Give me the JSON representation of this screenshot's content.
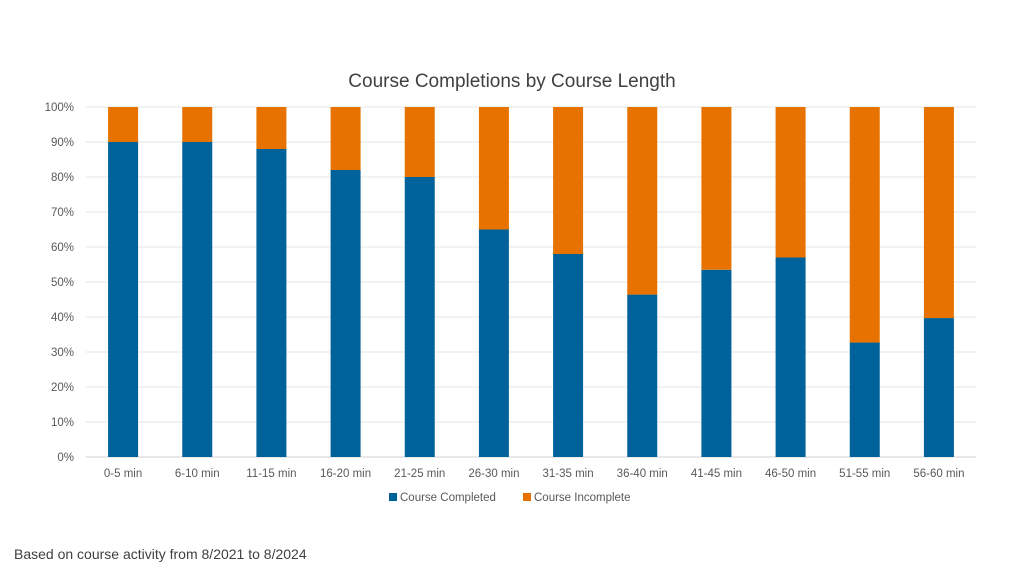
{
  "chart_data": {
    "type": "bar",
    "stacked": "percent",
    "title": "Course Completions by Course Length",
    "xlabel": "",
    "ylabel": "",
    "categories": [
      "0-5 min",
      "6-10 min",
      "11-15 min",
      "16-20 min",
      "21-25 min",
      "26-30 min",
      "31-35 min",
      "36-40 min",
      "41-45 min",
      "46-50 min",
      "51-55 min",
      "56-60 min"
    ],
    "series": [
      {
        "name": "Course Completed",
        "color": "#00629b",
        "values": [
          90,
          90,
          88,
          82,
          80,
          65,
          58,
          46.4,
          53.5,
          57,
          32.7,
          39.7
        ]
      },
      {
        "name": "Course Incomplete",
        "color": "#e87200",
        "values": [
          10,
          10,
          12,
          18,
          20,
          35,
          42,
          53.6,
          46.5,
          43,
          67.3,
          60.3
        ]
      }
    ],
    "yticks": [
      "0%",
      "10%",
      "20%",
      "30%",
      "40%",
      "50%",
      "60%",
      "70%",
      "80%",
      "90%",
      "100%"
    ],
    "ylim": [
      0,
      100
    ],
    "grid": true,
    "legend": "bottom"
  },
  "footnote": "Based on course activity from 8/2021 to 8/2024"
}
